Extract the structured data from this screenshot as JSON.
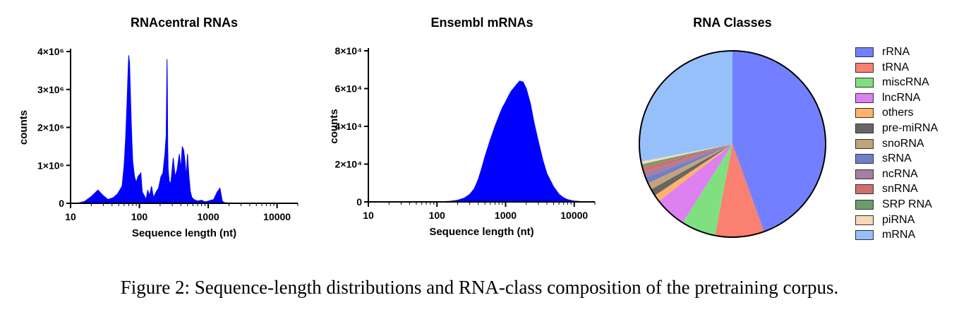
{
  "chart_data": [
    {
      "type": "area",
      "title": "RNAcentral RNAs",
      "xlabel": "Sequence length (nt)",
      "ylabel": "counts",
      "xscale": "log",
      "xlim": [
        10,
        20000
      ],
      "ylim": [
        0,
        4000000
      ],
      "xticks": [
        "10",
        "100",
        "1000",
        "10000"
      ],
      "yticks": [
        "0",
        "1×10⁶",
        "2×10⁶",
        "3×10⁶",
        "4×10⁶"
      ],
      "color": "#0000ff",
      "x": [
        10,
        13,
        16,
        20,
        25,
        30,
        35,
        42,
        48,
        52,
        56,
        60,
        63,
        66,
        68,
        70,
        72,
        74,
        76,
        78,
        80,
        85,
        90,
        95,
        100,
        105,
        110,
        118,
        125,
        132,
        140,
        150,
        160,
        175,
        190,
        205,
        220,
        235,
        245,
        252,
        255,
        258,
        262,
        270,
        285,
        310,
        330,
        355,
        380,
        400,
        420,
        440,
        460,
        480,
        500,
        525,
        550,
        580,
        620,
        700,
        800,
        900,
        1000,
        1200,
        1350,
        1480,
        1550,
        1600,
        1700,
        1900,
        2300,
        3000,
        3100,
        4000,
        6000,
        10000,
        20000
      ],
      "y": [
        0,
        10000,
        50000,
        180000,
        350000,
        200000,
        100000,
        150000,
        250000,
        350000,
        450000,
        1000000,
        1700000,
        2600000,
        3300000,
        3900000,
        3700000,
        2900000,
        2200000,
        1600000,
        1100000,
        700000,
        550000,
        700000,
        750000,
        800000,
        300000,
        200000,
        100000,
        350000,
        200000,
        450000,
        150000,
        300000,
        400000,
        700000,
        800000,
        1300000,
        1800000,
        3800000,
        3000000,
        1500000,
        900000,
        600000,
        500000,
        1200000,
        700000,
        900000,
        1300000,
        900000,
        1500000,
        1400000,
        1100000,
        700000,
        1300000,
        700000,
        300000,
        150000,
        100000,
        60000,
        80000,
        40000,
        60000,
        100000,
        300000,
        400000,
        200000,
        60000,
        20000,
        10000,
        5000,
        0,
        5000,
        0,
        0,
        0,
        0
      ]
    },
    {
      "type": "area",
      "title": "Ensembl  mRNAs",
      "xlabel": "Sequence length (nt)",
      "ylabel": "counts",
      "xscale": "log",
      "xlim": [
        10,
        20000
      ],
      "ylim": [
        0,
        80000
      ],
      "xticks": [
        "10",
        "100",
        "1000",
        "10000"
      ],
      "yticks": [
        "0",
        "2×10⁴",
        "4×10⁴",
        "6×10⁴",
        "8×10⁴"
      ],
      "color": "#0000ff",
      "x": [
        10,
        50,
        100,
        150,
        200,
        250,
        300,
        350,
        400,
        450,
        500,
        600,
        700,
        800,
        900,
        1000,
        1100,
        1200,
        1400,
        1600,
        1800,
        2000,
        2300,
        2600,
        3000,
        3500,
        4000,
        5000,
        6000,
        7000,
        8000,
        10000,
        13000,
        16000,
        20000
      ],
      "y": [
        0,
        0,
        50,
        300,
        900,
        2000,
        4000,
        7000,
        12000,
        18000,
        24000,
        33000,
        40000,
        45500,
        50000,
        53000,
        56000,
        58500,
        61500,
        64000,
        63500,
        60000,
        52000,
        42000,
        32000,
        22000,
        15000,
        8000,
        4000,
        2200,
        1200,
        500,
        150,
        40,
        0
      ]
    },
    {
      "type": "pie",
      "title": "RNA Classes",
      "labels": [
        "rRNA",
        "tRNA",
        "miscRNA",
        "lncRNA",
        "others",
        "pre-miRNA",
        "snoRNA",
        "sRNA",
        "ncRNA",
        "snRNA",
        "SRP RNA",
        "piRNA",
        "mRNA"
      ],
      "values": [
        44.5,
        8.5,
        6.0,
        5.5,
        1.2,
        1.2,
        1.2,
        1.0,
        1.0,
        0.9,
        0.5,
        0.5,
        28.0
      ],
      "colors": [
        "#7280ff",
        "#fa8072",
        "#80e080",
        "#dd80f2",
        "#ffb366",
        "#666666",
        "#c2a37a",
        "#6f7fc9",
        "#a77e9f",
        "#cf6f6f",
        "#6b9e6b",
        "#f6d8b8",
        "#96c0fa"
      ],
      "legend_position": "right"
    }
  ],
  "caption": "Figure 2: Sequence-length distributions and RNA-class composition of the pretraining corpus."
}
